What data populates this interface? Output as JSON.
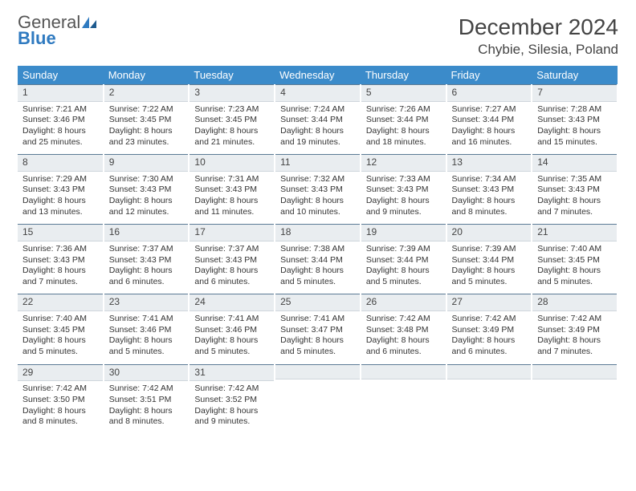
{
  "brand": {
    "word1": "General",
    "word2": "Blue"
  },
  "title": "December 2024",
  "location": "Chybie, Silesia, Poland",
  "colors": {
    "header_bg": "#3b8bca",
    "header_text": "#ffffff",
    "daynum_bg": "#e9edf0",
    "daynum_border_top": "#5b7a95",
    "text": "#333333",
    "brand_blue": "#2f7ac0"
  },
  "weekdays": [
    "Sunday",
    "Monday",
    "Tuesday",
    "Wednesday",
    "Thursday",
    "Friday",
    "Saturday"
  ],
  "weeks": [
    [
      {
        "n": "1",
        "sr": "Sunrise: 7:21 AM",
        "ss": "Sunset: 3:46 PM",
        "dl": "Daylight: 8 hours and 25 minutes."
      },
      {
        "n": "2",
        "sr": "Sunrise: 7:22 AM",
        "ss": "Sunset: 3:45 PM",
        "dl": "Daylight: 8 hours and 23 minutes."
      },
      {
        "n": "3",
        "sr": "Sunrise: 7:23 AM",
        "ss": "Sunset: 3:45 PM",
        "dl": "Daylight: 8 hours and 21 minutes."
      },
      {
        "n": "4",
        "sr": "Sunrise: 7:24 AM",
        "ss": "Sunset: 3:44 PM",
        "dl": "Daylight: 8 hours and 19 minutes."
      },
      {
        "n": "5",
        "sr": "Sunrise: 7:26 AM",
        "ss": "Sunset: 3:44 PM",
        "dl": "Daylight: 8 hours and 18 minutes."
      },
      {
        "n": "6",
        "sr": "Sunrise: 7:27 AM",
        "ss": "Sunset: 3:44 PM",
        "dl": "Daylight: 8 hours and 16 minutes."
      },
      {
        "n": "7",
        "sr": "Sunrise: 7:28 AM",
        "ss": "Sunset: 3:43 PM",
        "dl": "Daylight: 8 hours and 15 minutes."
      }
    ],
    [
      {
        "n": "8",
        "sr": "Sunrise: 7:29 AM",
        "ss": "Sunset: 3:43 PM",
        "dl": "Daylight: 8 hours and 13 minutes."
      },
      {
        "n": "9",
        "sr": "Sunrise: 7:30 AM",
        "ss": "Sunset: 3:43 PM",
        "dl": "Daylight: 8 hours and 12 minutes."
      },
      {
        "n": "10",
        "sr": "Sunrise: 7:31 AM",
        "ss": "Sunset: 3:43 PM",
        "dl": "Daylight: 8 hours and 11 minutes."
      },
      {
        "n": "11",
        "sr": "Sunrise: 7:32 AM",
        "ss": "Sunset: 3:43 PM",
        "dl": "Daylight: 8 hours and 10 minutes."
      },
      {
        "n": "12",
        "sr": "Sunrise: 7:33 AM",
        "ss": "Sunset: 3:43 PM",
        "dl": "Daylight: 8 hours and 9 minutes."
      },
      {
        "n": "13",
        "sr": "Sunrise: 7:34 AM",
        "ss": "Sunset: 3:43 PM",
        "dl": "Daylight: 8 hours and 8 minutes."
      },
      {
        "n": "14",
        "sr": "Sunrise: 7:35 AM",
        "ss": "Sunset: 3:43 PM",
        "dl": "Daylight: 8 hours and 7 minutes."
      }
    ],
    [
      {
        "n": "15",
        "sr": "Sunrise: 7:36 AM",
        "ss": "Sunset: 3:43 PM",
        "dl": "Daylight: 8 hours and 7 minutes."
      },
      {
        "n": "16",
        "sr": "Sunrise: 7:37 AM",
        "ss": "Sunset: 3:43 PM",
        "dl": "Daylight: 8 hours and 6 minutes."
      },
      {
        "n": "17",
        "sr": "Sunrise: 7:37 AM",
        "ss": "Sunset: 3:43 PM",
        "dl": "Daylight: 8 hours and 6 minutes."
      },
      {
        "n": "18",
        "sr": "Sunrise: 7:38 AM",
        "ss": "Sunset: 3:44 PM",
        "dl": "Daylight: 8 hours and 5 minutes."
      },
      {
        "n": "19",
        "sr": "Sunrise: 7:39 AM",
        "ss": "Sunset: 3:44 PM",
        "dl": "Daylight: 8 hours and 5 minutes."
      },
      {
        "n": "20",
        "sr": "Sunrise: 7:39 AM",
        "ss": "Sunset: 3:44 PM",
        "dl": "Daylight: 8 hours and 5 minutes."
      },
      {
        "n": "21",
        "sr": "Sunrise: 7:40 AM",
        "ss": "Sunset: 3:45 PM",
        "dl": "Daylight: 8 hours and 5 minutes."
      }
    ],
    [
      {
        "n": "22",
        "sr": "Sunrise: 7:40 AM",
        "ss": "Sunset: 3:45 PM",
        "dl": "Daylight: 8 hours and 5 minutes."
      },
      {
        "n": "23",
        "sr": "Sunrise: 7:41 AM",
        "ss": "Sunset: 3:46 PM",
        "dl": "Daylight: 8 hours and 5 minutes."
      },
      {
        "n": "24",
        "sr": "Sunrise: 7:41 AM",
        "ss": "Sunset: 3:46 PM",
        "dl": "Daylight: 8 hours and 5 minutes."
      },
      {
        "n": "25",
        "sr": "Sunrise: 7:41 AM",
        "ss": "Sunset: 3:47 PM",
        "dl": "Daylight: 8 hours and 5 minutes."
      },
      {
        "n": "26",
        "sr": "Sunrise: 7:42 AM",
        "ss": "Sunset: 3:48 PM",
        "dl": "Daylight: 8 hours and 6 minutes."
      },
      {
        "n": "27",
        "sr": "Sunrise: 7:42 AM",
        "ss": "Sunset: 3:49 PM",
        "dl": "Daylight: 8 hours and 6 minutes."
      },
      {
        "n": "28",
        "sr": "Sunrise: 7:42 AM",
        "ss": "Sunset: 3:49 PM",
        "dl": "Daylight: 8 hours and 7 minutes."
      }
    ],
    [
      {
        "n": "29",
        "sr": "Sunrise: 7:42 AM",
        "ss": "Sunset: 3:50 PM",
        "dl": "Daylight: 8 hours and 8 minutes."
      },
      {
        "n": "30",
        "sr": "Sunrise: 7:42 AM",
        "ss": "Sunset: 3:51 PM",
        "dl": "Daylight: 8 hours and 8 minutes."
      },
      {
        "n": "31",
        "sr": "Sunrise: 7:42 AM",
        "ss": "Sunset: 3:52 PM",
        "dl": "Daylight: 8 hours and 9 minutes."
      },
      null,
      null,
      null,
      null
    ]
  ]
}
